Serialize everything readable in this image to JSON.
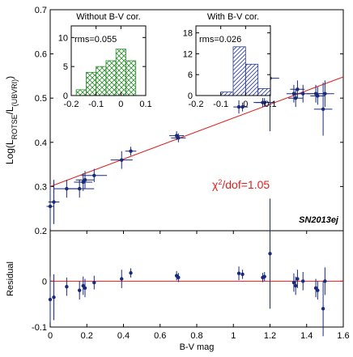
{
  "chart_data": [
    {
      "type": "scatter",
      "y_label": {
        "prefix": "Log(L",
        "sub1": "ROTSE",
        "mid": "/L",
        "sub2": "(UBVRI)",
        "suffix": ")"
      },
      "annotation": {
        "chi": "χ",
        "power": "2",
        "rest": "/dof=1.05"
      },
      "label": "SN2013ej",
      "xlim": [
        0,
        1.6
      ],
      "ylim": [
        0.2,
        0.7
      ],
      "yticks": [
        0.2,
        0.3,
        0.4,
        0.5,
        0.6,
        0.7
      ],
      "color": "#1a2a7a",
      "x": [
        0.0,
        0.02,
        0.09,
        0.16,
        0.18,
        0.19,
        0.24,
        0.39,
        0.44,
        0.69,
        0.7,
        1.03,
        1.05,
        1.16,
        1.17,
        1.2,
        1.33,
        1.34,
        1.35,
        1.38,
        1.45,
        1.46,
        1.49,
        1.5
      ],
      "xerr": [
        0.02,
        0.03,
        0.07,
        0.08,
        0.05,
        0.05,
        0.07,
        0.06,
        0.03,
        0.04,
        0.04,
        0.03,
        0.03,
        0.05,
        0.05,
        0.05,
        0.04,
        0.04,
        0.04,
        0.06,
        0.05,
        0.04,
        0.05,
        0.05
      ],
      "values": [
        0.255,
        0.265,
        0.295,
        0.295,
        0.31,
        0.315,
        0.325,
        0.36,
        0.38,
        0.415,
        0.41,
        0.48,
        0.48,
        0.49,
        0.49,
        0.545,
        0.51,
        0.5,
        0.52,
        0.51,
        0.51,
        0.505,
        0.475,
        0.51
      ],
      "yerr": [
        0.05,
        0.05,
        0.02,
        0.02,
        0.02,
        0.02,
        0.015,
        0.02,
        0.01,
        0.01,
        0.01,
        0.015,
        0.01,
        0.01,
        0.01,
        0.12,
        0.02,
        0.02,
        0.02,
        0.02,
        0.02,
        0.02,
        0.06,
        0.03
      ],
      "fit": {
        "x": [
          0,
          1.6
        ],
        "values": [
          0.3,
          0.548
        ],
        "color": "#e02020"
      }
    },
    {
      "type": "residual",
      "y_label": "Residual",
      "x_label": "B-V mag",
      "xlim": [
        0,
        1.6
      ],
      "xticks": [
        0,
        0.2,
        0.4,
        0.6,
        0.8,
        1,
        1.2,
        1.4,
        1.6
      ],
      "ylim": [
        -0.1,
        0.11
      ],
      "yticks": [
        -0.1,
        0
      ],
      "color": "#1a2a7a",
      "line_color": "#e02020",
      "x": [
        0.0,
        0.02,
        0.09,
        0.16,
        0.18,
        0.19,
        0.24,
        0.39,
        0.44,
        0.69,
        0.7,
        1.03,
        1.05,
        1.16,
        1.17,
        1.2,
        1.33,
        1.34,
        1.35,
        1.38,
        1.45,
        1.46,
        1.49,
        1.5
      ],
      "values": [
        -0.04,
        -0.035,
        -0.012,
        -0.02,
        -0.01,
        -0.015,
        -0.003,
        0.005,
        0.018,
        0.012,
        0.008,
        0.017,
        0.015,
        0.008,
        0.01,
        0.06,
        -0.003,
        -0.01,
        0.005,
        0.0,
        -0.015,
        -0.02,
        -0.06,
        0.0
      ],
      "yerr": [
        0.05,
        0.05,
        0.02,
        0.02,
        0.02,
        0.02,
        0.015,
        0.02,
        0.01,
        0.01,
        0.01,
        0.015,
        0.01,
        0.01,
        0.01,
        0.12,
        0.02,
        0.02,
        0.02,
        0.02,
        0.02,
        0.02,
        0.06,
        0.03
      ]
    },
    {
      "type": "histogram",
      "title": "Without B-V cor.",
      "annotation": "rms=0.055",
      "color": "#2e8b2e",
      "hatch": "cross",
      "bins": [
        -0.18,
        -0.14,
        -0.1,
        -0.06,
        -0.02,
        0.02,
        0.06
      ],
      "counts": [
        1,
        4,
        5,
        6,
        8,
        6
      ],
      "xlim": [
        -0.2,
        0.1
      ],
      "xticks": [
        -0.2,
        -0.1,
        0,
        0.1
      ],
      "ylim": [
        0,
        12
      ],
      "yticks": [
        0,
        5,
        10
      ]
    },
    {
      "type": "histogram",
      "title": "With B-V cor.",
      "annotation": "rms=0.026",
      "color": "#2a3a9a",
      "hatch": "diagonal",
      "bins": [
        -0.1,
        -0.05,
        0,
        0.05,
        0.1
      ],
      "counts": [
        1,
        14,
        9,
        2
      ],
      "xlim": [
        -0.2,
        0.1
      ],
      "xticks": [
        -0.2,
        -0.1,
        0,
        0.1
      ],
      "ylim": [
        0,
        20
      ],
      "yticks": [
        0,
        6,
        12,
        18
      ]
    }
  ]
}
